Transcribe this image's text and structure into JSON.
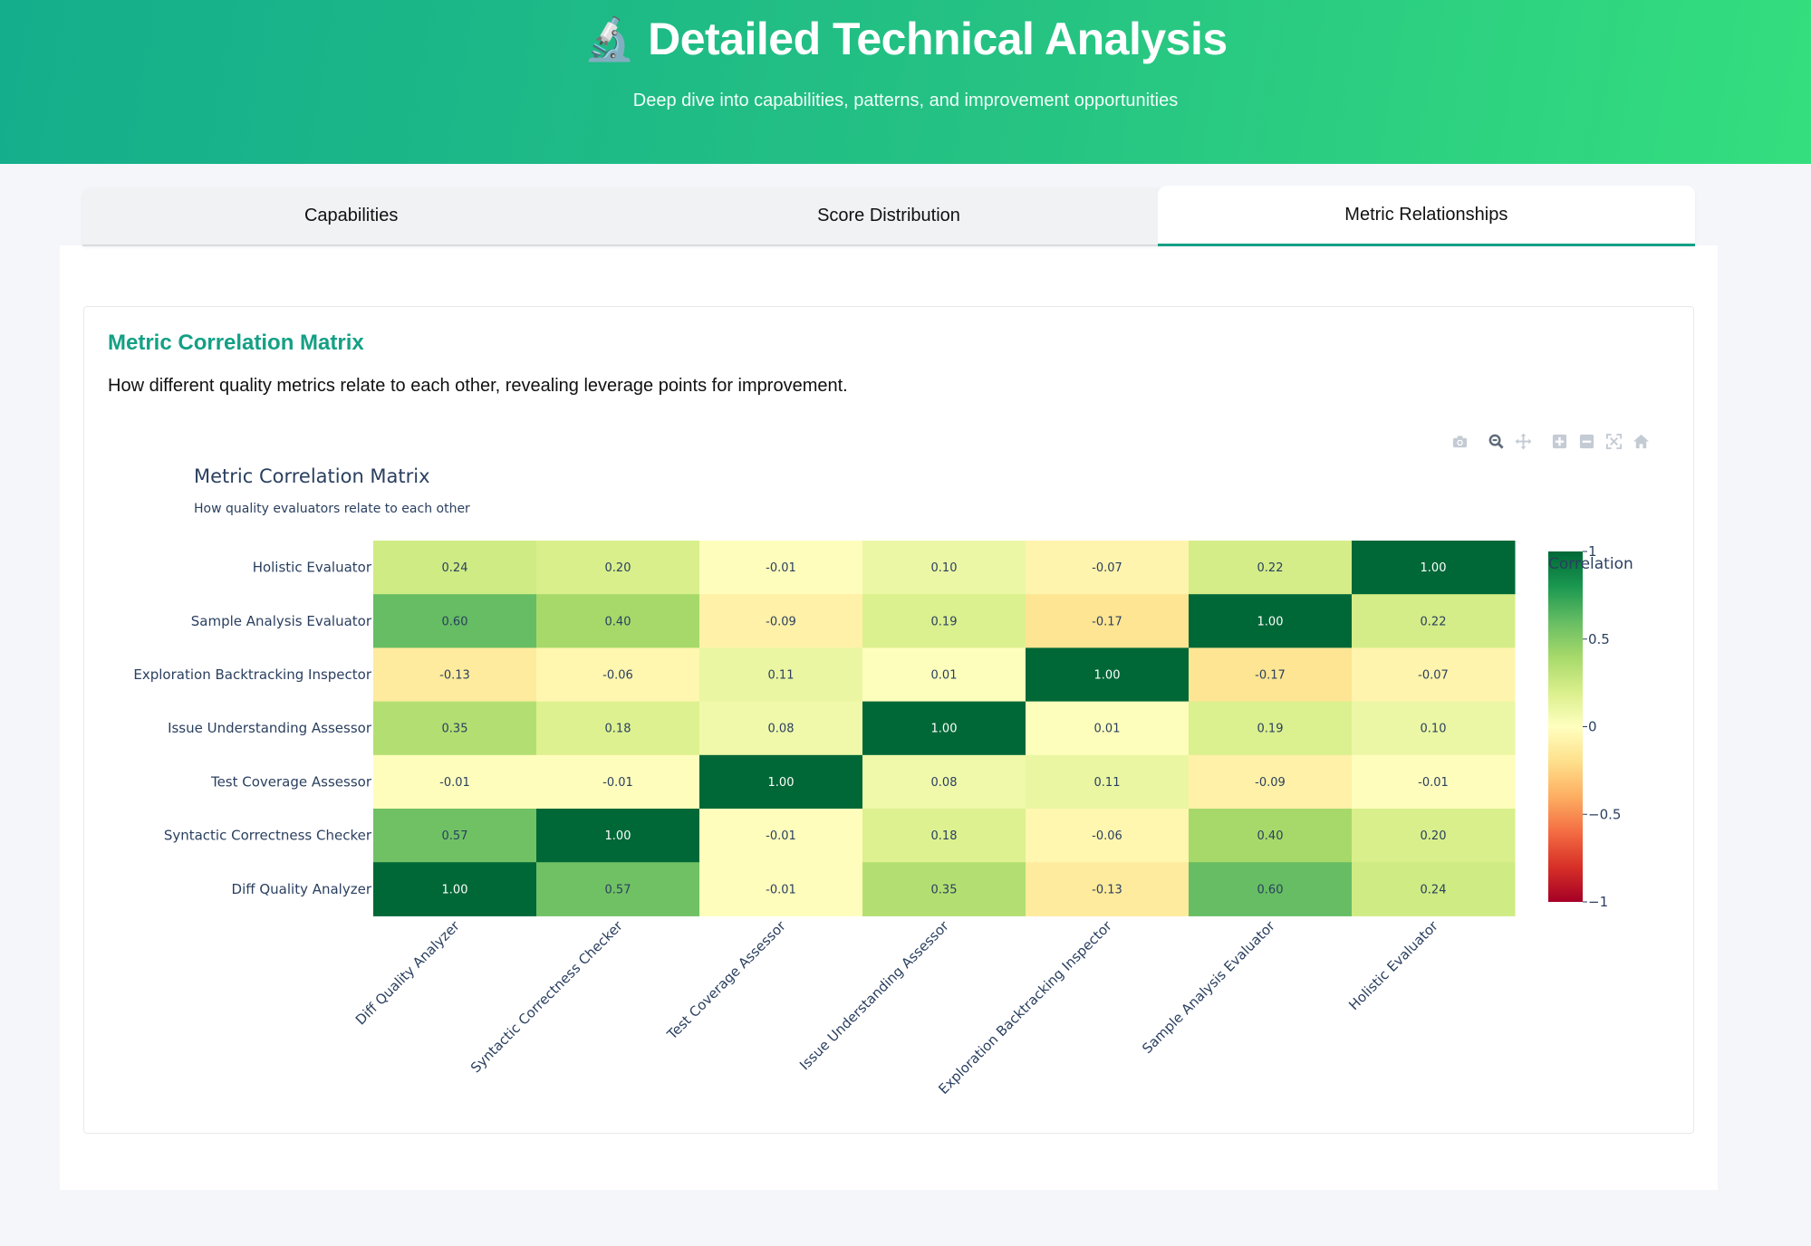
{
  "header": {
    "icon": "microscope-icon",
    "icon_glyph": "🔬",
    "title": "Detailed Technical Analysis",
    "subtitle": "Deep dive into capabilities, patterns, and improvement opportunities",
    "gradient_start": "#14ae8c",
    "gradient_end": "#34de7e"
  },
  "tabs": [
    {
      "label": "Capabilities",
      "active": false
    },
    {
      "label": "Score Distribution",
      "active": false
    },
    {
      "label": "Metric Relationships",
      "active": true
    }
  ],
  "section": {
    "title": "Metric Correlation Matrix",
    "description": "How different quality metrics relate to each other, revealing leverage points for improvement.",
    "accent_color": "#14a085"
  },
  "modebar": [
    {
      "icon": "camera-icon",
      "name": "Download plot as a png"
    },
    {
      "icon": "zoom-icon",
      "name": "Zoom"
    },
    {
      "icon": "pan-icon",
      "name": "Pan"
    },
    {
      "icon": "zoom-in-icon",
      "name": "Zoom in"
    },
    {
      "icon": "zoom-out-icon",
      "name": "Zoom out"
    },
    {
      "icon": "autoscale-icon",
      "name": "Autoscale"
    },
    {
      "icon": "home-icon",
      "name": "Reset axes"
    }
  ],
  "chart_data": {
    "type": "heatmap",
    "title": "Metric Correlation Matrix",
    "subtitle": "How quality evaluators relate to each other",
    "x_labels": [
      "Diff Quality Analyzer",
      "Syntactic Correctness Checker",
      "Test Coverage Assessor",
      "Issue Understanding Assessor",
      "Exploration Backtracking Inspector",
      "Sample Analysis Evaluator",
      "Holistic Evaluator"
    ],
    "y_labels_top_to_bottom": [
      "Holistic Evaluator",
      "Sample Analysis Evaluator",
      "Exploration Backtracking Inspector",
      "Issue Understanding Assessor",
      "Test Coverage Assessor",
      "Syntactic Correctness Checker",
      "Diff Quality Analyzer"
    ],
    "z_top_to_bottom": [
      [
        0.24,
        0.2,
        -0.01,
        0.1,
        -0.07,
        0.22,
        1.0
      ],
      [
        0.6,
        0.4,
        -0.09,
        0.19,
        -0.17,
        1.0,
        0.22
      ],
      [
        -0.13,
        -0.06,
        0.11,
        0.01,
        1.0,
        -0.17,
        -0.07
      ],
      [
        0.35,
        0.18,
        0.08,
        1.0,
        0.01,
        0.19,
        0.1
      ],
      [
        -0.01,
        -0.01,
        1.0,
        0.08,
        0.11,
        -0.09,
        -0.01
      ],
      [
        0.57,
        1.0,
        -0.01,
        0.18,
        -0.06,
        0.4,
        0.2
      ],
      [
        1.0,
        0.57,
        -0.01,
        0.35,
        -0.13,
        0.6,
        0.24
      ]
    ],
    "zmin": -1,
    "zmax": 1,
    "colorscale": "RdYlGn",
    "colorbar_title": "Correlation",
    "colorbar_ticks": [
      "1",
      "0.5",
      "0",
      "−0.5",
      "−1"
    ],
    "colorbar_tick_values": [
      1,
      0.5,
      0,
      -0.5,
      -1
    ],
    "legend_position": "right"
  }
}
